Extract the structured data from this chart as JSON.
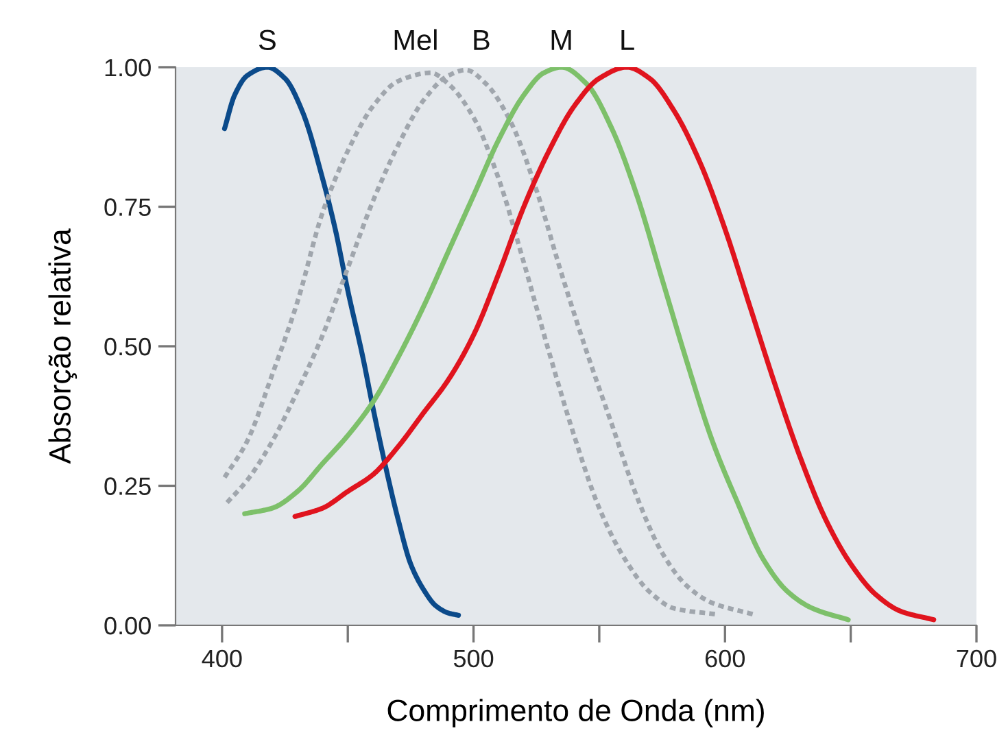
{
  "chart_data": {
    "type": "line",
    "xlabel": "Comprimento de Onda (nm)",
    "ylabel": "Absorção relativa",
    "xlim": [
      381.5,
      700
    ],
    "ylim": [
      0,
      1
    ],
    "xticks": [
      400,
      {
        "value": 450,
        "label": null
      },
      500,
      {
        "value": 550,
        "label": null
      },
      600,
      {
        "value": 650,
        "label": null
      },
      700
    ],
    "yticks": [
      {
        "value": 0,
        "label": "0.00"
      },
      {
        "value": 0.25,
        "label": "0.25"
      },
      {
        "value": 0.5,
        "label": "0.50"
      },
      {
        "value": 0.75,
        "label": "0.75"
      },
      {
        "value": 1,
        "label": "1.00"
      }
    ],
    "grid": false,
    "legend": false,
    "marker": "none",
    "series": [
      {
        "name": "S",
        "color": "#0b4a8a",
        "line_style": "solid",
        "x": [
          401,
          405,
          410,
          418,
          425,
          432,
          440,
          445,
          450,
          456,
          460,
          465,
          470,
          475,
          480,
          485,
          490,
          494
        ],
        "values": [
          0.89,
          0.95,
          0.985,
          1.0,
          0.98,
          0.92,
          0.8,
          0.71,
          0.6,
          0.48,
          0.39,
          0.285,
          0.19,
          0.11,
          0.065,
          0.035,
          0.022,
          0.018
        ]
      },
      {
        "name": "Mel",
        "color": "#a0a6ad",
        "line_style": "dashed",
        "x": [
          401,
          410,
          420,
          430,
          440,
          450,
          460,
          470,
          483,
          490,
          500,
          510,
          520,
          530,
          540,
          550,
          560,
          570,
          580,
          596
        ],
        "values": [
          0.265,
          0.33,
          0.45,
          0.58,
          0.74,
          0.85,
          0.93,
          0.975,
          0.99,
          0.97,
          0.91,
          0.8,
          0.65,
          0.49,
          0.34,
          0.21,
          0.12,
          0.06,
          0.03,
          0.02
        ]
      },
      {
        "name": "B",
        "color": "#a0a6ad",
        "line_style": "dashed",
        "x": [
          402,
          410,
          420,
          430,
          440,
          450,
          460,
          470,
          480,
          490,
          497,
          505,
          515,
          525,
          535,
          545,
          555,
          565,
          575,
          585,
          595,
          611
        ],
        "values": [
          0.22,
          0.26,
          0.33,
          0.42,
          0.52,
          0.64,
          0.76,
          0.86,
          0.94,
          0.985,
          0.995,
          0.97,
          0.9,
          0.78,
          0.63,
          0.49,
          0.36,
          0.23,
          0.13,
          0.07,
          0.04,
          0.02
        ]
      },
      {
        "name": "M",
        "color": "#7dc06a",
        "line_style": "solid",
        "x": [
          409,
          420,
          430,
          440,
          450,
          460,
          470,
          480,
          490,
          500,
          510,
          520,
          528,
          535,
          545,
          555,
          565,
          575,
          585,
          595,
          605,
          615,
          625,
          635,
          649
        ],
        "values": [
          0.2,
          0.21,
          0.24,
          0.29,
          0.34,
          0.4,
          0.48,
          0.57,
          0.67,
          0.77,
          0.87,
          0.95,
          0.99,
          1.0,
          0.97,
          0.89,
          0.77,
          0.62,
          0.47,
          0.33,
          0.22,
          0.12,
          0.06,
          0.03,
          0.01
        ]
      },
      {
        "name": "L",
        "color": "#e0141e",
        "line_style": "solid",
        "x": [
          429,
          440,
          450,
          460,
          470,
          480,
          490,
          500,
          510,
          520,
          530,
          540,
          550,
          561,
          570,
          580,
          590,
          600,
          610,
          620,
          630,
          640,
          650,
          660,
          670,
          683
        ],
        "values": [
          0.195,
          0.21,
          0.24,
          0.27,
          0.32,
          0.38,
          0.44,
          0.52,
          0.63,
          0.75,
          0.85,
          0.93,
          0.98,
          1.0,
          0.98,
          0.92,
          0.83,
          0.71,
          0.57,
          0.43,
          0.3,
          0.19,
          0.11,
          0.055,
          0.025,
          0.01
        ]
      }
    ]
  }
}
